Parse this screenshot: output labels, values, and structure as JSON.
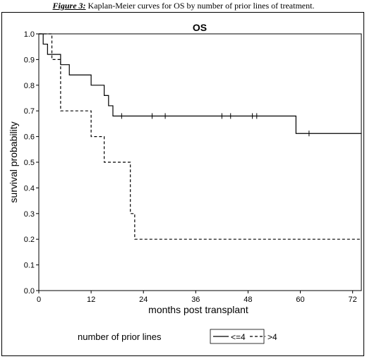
{
  "caption": {
    "label": "Figure 3:",
    "text": " Kaplan-Meier curves for OS by number of prior lines of treatment."
  },
  "chart_data": {
    "type": "line",
    "title": "OS",
    "xlabel": "months post transplant",
    "ylabel": "survival probability",
    "xlim": [
      0,
      74
    ],
    "ylim": [
      0,
      1
    ],
    "xticks": [
      "0",
      "12",
      "24",
      "36",
      "48",
      "60",
      "72"
    ],
    "yticks": [
      "0.0",
      "0.1",
      "0.2",
      "0.3",
      "0.4",
      "0.5",
      "0.6",
      "0.7",
      "0.8",
      "0.9",
      "1.0"
    ],
    "legend_title": "number of prior lines",
    "legend_position": "bottom",
    "series": [
      {
        "name": "<=4",
        "style": "solid",
        "steps": [
          [
            0,
            1.0
          ],
          [
            1,
            0.96
          ],
          [
            2,
            0.92
          ],
          [
            5,
            0.88
          ],
          [
            7,
            0.84
          ],
          [
            12,
            0.8
          ],
          [
            15,
            0.76
          ],
          [
            16,
            0.72
          ],
          [
            17,
            0.68
          ],
          [
            59,
            0.612
          ],
          [
            74,
            0.612
          ]
        ],
        "censored": [
          [
            19,
            0.68
          ],
          [
            26,
            0.68
          ],
          [
            29,
            0.68
          ],
          [
            42,
            0.68
          ],
          [
            44,
            0.68
          ],
          [
            49,
            0.68
          ],
          [
            50,
            0.68
          ],
          [
            62,
            0.612
          ]
        ]
      },
      {
        "name": ">4",
        "style": "dashed",
        "steps": [
          [
            0,
            1.0
          ],
          [
            3,
            0.9
          ],
          [
            5,
            0.7
          ],
          [
            12,
            0.6
          ],
          [
            15,
            0.5
          ],
          [
            21,
            0.3
          ],
          [
            22,
            0.2
          ],
          [
            74,
            0.2
          ]
        ],
        "censored": []
      }
    ]
  }
}
